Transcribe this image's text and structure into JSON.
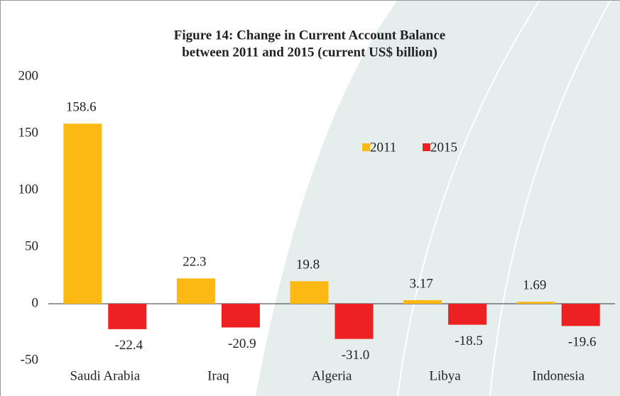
{
  "chart_data": {
    "type": "bar",
    "title": [
      "Figure 14: Change in Current Account Balance",
      "between 2011 and 2015 (current US$ billion)"
    ],
    "categories": [
      "Saudi Arabia",
      "Iraq",
      "Algeria",
      "Libya",
      "Indonesia"
    ],
    "series": [
      {
        "name": "2011",
        "color": "#fdb913",
        "values": [
          158.6,
          22.3,
          19.8,
          3.17,
          1.69
        ]
      },
      {
        "name": "2015",
        "color": "#ed2024",
        "values": [
          -22.4,
          -20.9,
          -31.0,
          -18.5,
          -19.6
        ],
        "value_labels": [
          "-22.4",
          "-20.9",
          "-31.0",
          "-18.5",
          "-19.6"
        ]
      }
    ],
    "ylim": [
      -50,
      200
    ],
    "yticks": [
      -50,
      0,
      50,
      100,
      150,
      200
    ],
    "grid": false
  }
}
